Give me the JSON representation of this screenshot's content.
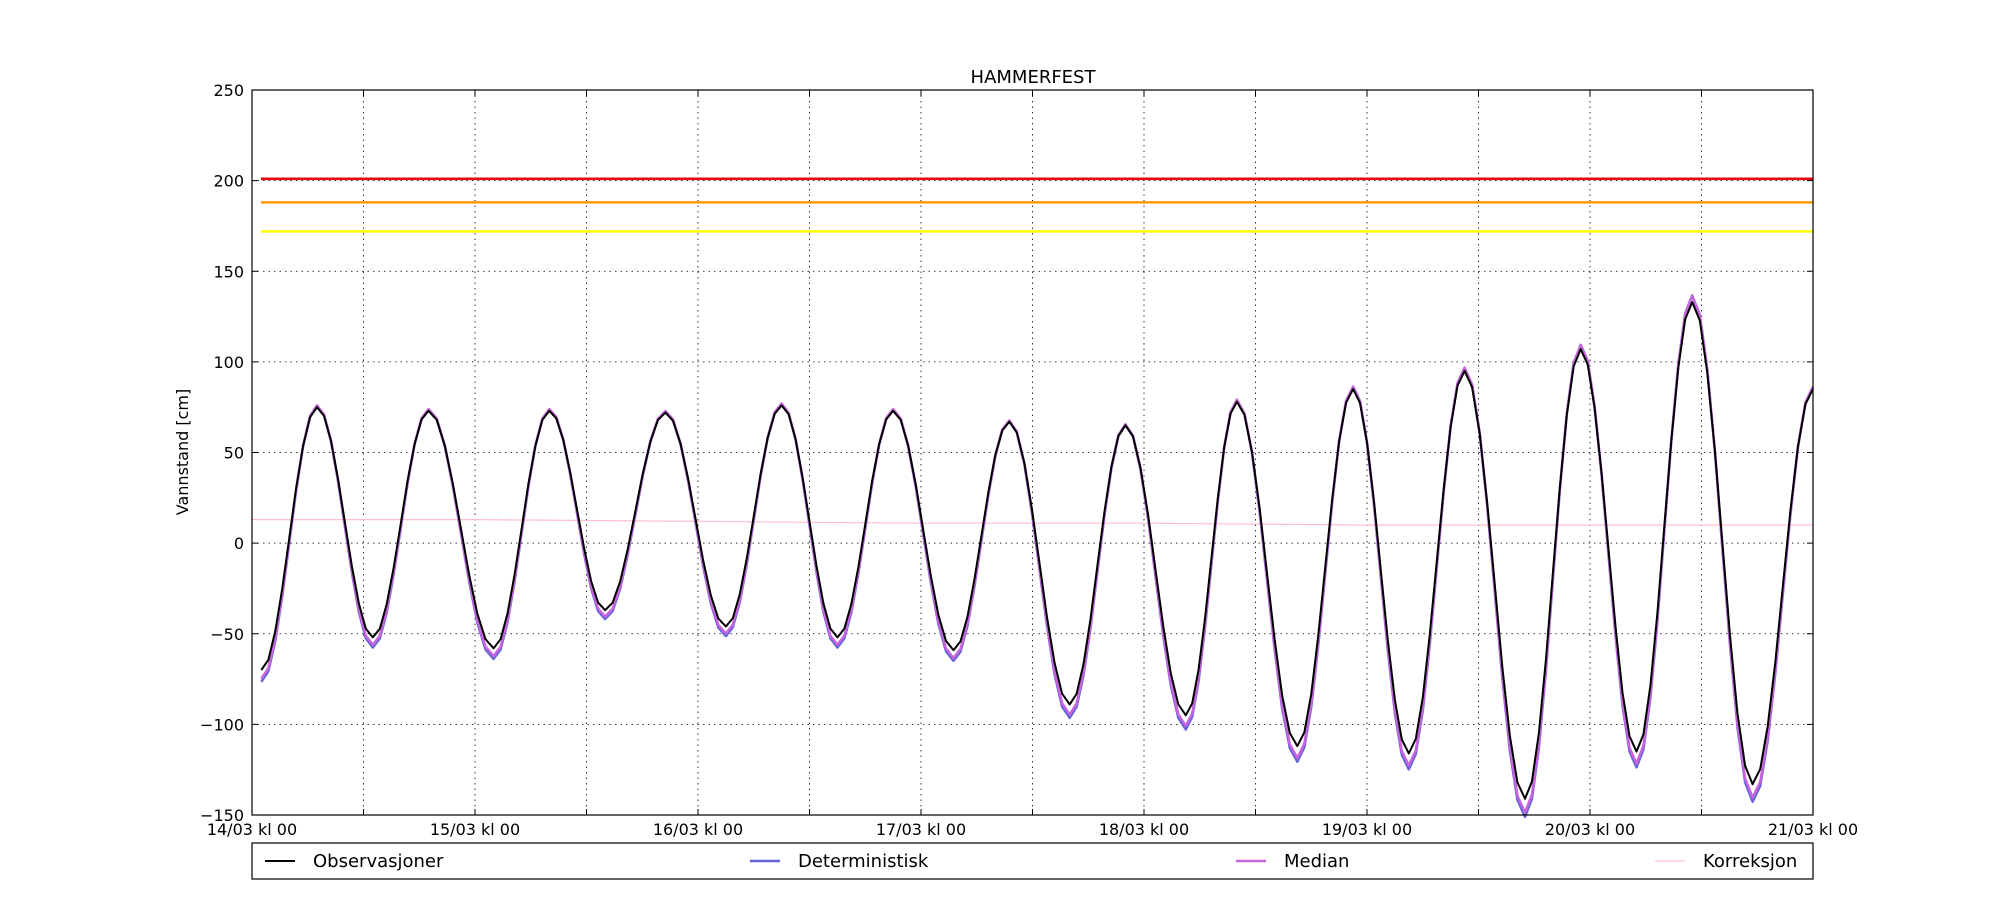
{
  "chart_data": {
    "type": "line",
    "title": "HAMMERFEST",
    "xlabel": "",
    "ylabel": "Vannstand [cm]",
    "ylim": [
      -150,
      250
    ],
    "xlim": [
      "14/03 kl 00",
      "21/03 kl 00"
    ],
    "x_unit": "hours since 14/03 kl 00",
    "grid": true,
    "legend_placement": "bottom",
    "yticks": [
      250,
      200,
      150,
      100,
      50,
      0,
      -50,
      -100,
      -150
    ],
    "ytick_labels": [
      "250",
      "200",
      "150",
      "100",
      "50",
      "0",
      "−50",
      "−100",
      "−150"
    ],
    "xticks_labeled": [
      {
        "hour": 0,
        "label": "14/03 kl 00"
      },
      {
        "hour": 24,
        "label": "15/03 kl 00"
      },
      {
        "hour": 48,
        "label": "16/03 kl 00"
      },
      {
        "hour": 72,
        "label": "17/03 kl 00"
      },
      {
        "hour": 96,
        "label": "18/03 kl 00"
      },
      {
        "hour": 120,
        "label": "19/03 kl 00"
      },
      {
        "hour": 144,
        "label": "20/03 kl 00"
      },
      {
        "hour": 168,
        "label": "21/03 kl 00"
      }
    ],
    "xticks_minor": [
      12,
      36,
      60,
      84,
      108,
      132,
      156
    ],
    "thresholds": [
      {
        "value": 201,
        "color": "#e8000b"
      },
      {
        "value": 188,
        "color": "#ff9900"
      },
      {
        "value": 172,
        "color": "#ffff00"
      }
    ],
    "extrema": [
      {
        "t": 1,
        "v": -70
      },
      {
        "t": 7,
        "v": 75
      },
      {
        "t": 13,
        "v": -52
      },
      {
        "t": 19,
        "v": 73
      },
      {
        "t": 26,
        "v": -58
      },
      {
        "t": 32,
        "v": 73
      },
      {
        "t": 38,
        "v": -37
      },
      {
        "t": 44.5,
        "v": 72
      },
      {
        "t": 51,
        "v": -46
      },
      {
        "t": 57,
        "v": 76
      },
      {
        "t": 63,
        "v": -52
      },
      {
        "t": 69,
        "v": 73
      },
      {
        "t": 75.5,
        "v": -59
      },
      {
        "t": 81.5,
        "v": 67
      },
      {
        "t": 88,
        "v": -89
      },
      {
        "t": 94,
        "v": 65
      },
      {
        "t": 100.5,
        "v": -95
      },
      {
        "t": 106,
        "v": 78
      },
      {
        "t": 112.5,
        "v": -112
      },
      {
        "t": 118.5,
        "v": 85
      },
      {
        "t": 124.5,
        "v": -116
      },
      {
        "t": 130.5,
        "v": 95
      },
      {
        "t": 137,
        "v": -141
      },
      {
        "t": 143,
        "v": 107
      },
      {
        "t": 149,
        "v": -115
      },
      {
        "t": 155,
        "v": 133
      },
      {
        "t": 161.5,
        "v": -133
      },
      {
        "t": 168,
        "v": 85
      }
    ],
    "series": [
      {
        "name": "Observasjoner",
        "color": "#000000",
        "width": 2,
        "source": "extrema",
        "scale": 1.0,
        "offset": 0
      },
      {
        "name": "Deterministisk",
        "color": "#6464dc",
        "width": 2.5,
        "source": "extrema",
        "scale": 1.05,
        "offset": -3
      },
      {
        "name": "Median",
        "color": "#c864dc",
        "width": 2.5,
        "source": "extrema",
        "scale": 1.04,
        "offset": -2
      },
      {
        "name": "Korreksjon",
        "color": "#ffc0cb",
        "width": 1.2,
        "source": "points",
        "points": [
          [
            0,
            13
          ],
          [
            24,
            13
          ],
          [
            48,
            12
          ],
          [
            72,
            11
          ],
          [
            96,
            11
          ],
          [
            120,
            10
          ],
          [
            144,
            10
          ],
          [
            168,
            10
          ]
        ]
      }
    ]
  }
}
